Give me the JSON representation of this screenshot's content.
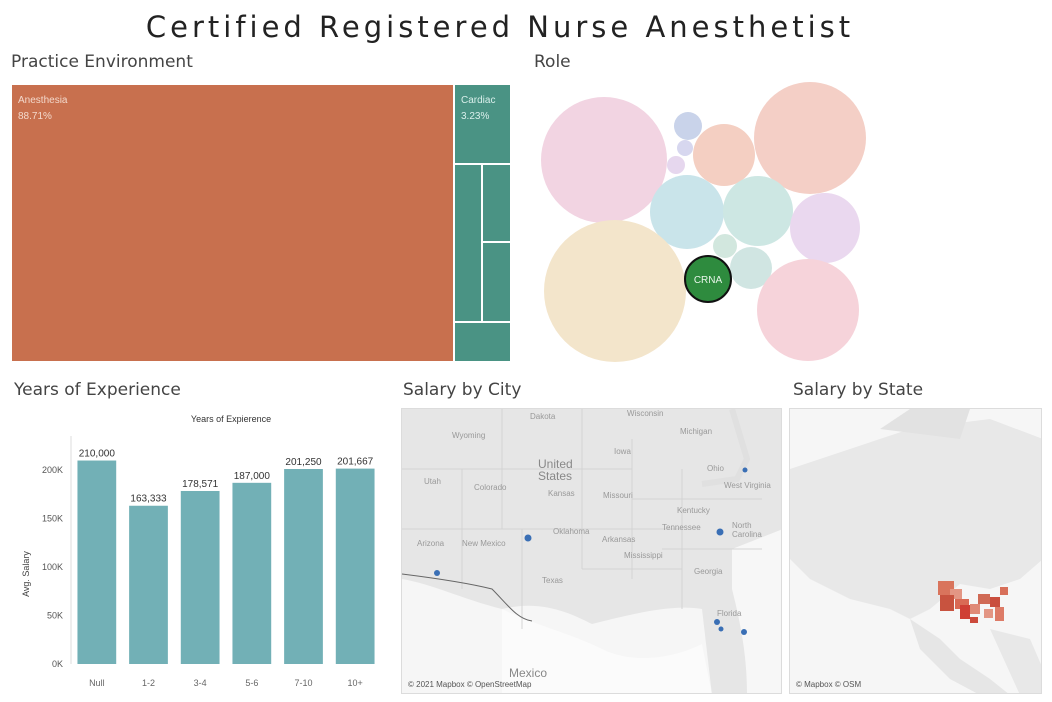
{
  "title": "Certified Registered Nurse Anesthetist",
  "sections": {
    "practice_environment": "Practice Environment",
    "role": "Role",
    "years_of_experience": "Years of Experience",
    "salary_by_city": "Salary by City",
    "salary_by_state": "Salary by State"
  },
  "treemap": {
    "main": {
      "label": "Anesthesia",
      "value": "88.71%",
      "color": "#c8704e"
    },
    "side": {
      "label": "Cardiac",
      "value": "3.23%",
      "color": "#4a9384"
    }
  },
  "role": {
    "highlight_label": "CRNA",
    "highlight_color": "#2e8b3e"
  },
  "chart_data": {
    "type": "bar",
    "title": "Years of Expierence",
    "ylabel": "Avg. Salary",
    "xlabel": "",
    "categories": [
      "Null",
      "1-2",
      "3-4",
      "5-6",
      "7-10",
      "10+"
    ],
    "values": [
      210000,
      163333,
      178571,
      187000,
      201250,
      201667
    ],
    "value_labels": [
      "210,000",
      "163,333",
      "178,571",
      "187,000",
      "201,250",
      "201,667"
    ],
    "y_ticks": [
      0,
      50000,
      100000,
      150000,
      200000
    ],
    "y_tick_labels": [
      "0K",
      "50K",
      "100K",
      "150K",
      "200K"
    ],
    "ylim": [
      0,
      225000
    ],
    "bar_color": "#72b0b6",
    "grid": false
  },
  "city_map": {
    "labels": [
      "Dakota",
      "Wisconsin",
      "Michigan",
      "Wyoming",
      "Iowa",
      "Ohio",
      "Utah",
      "Colorado",
      "Kansas",
      "Missouri",
      "Kentucky",
      "West Virginia",
      "Oklahoma",
      "Tennessee",
      "North Carolina",
      "Arizona",
      "New Mexico",
      "Arkansas",
      "Mississippi",
      "Texas",
      "Georgia",
      "Florida",
      "Mexico"
    ],
    "country_label": "United States",
    "attribution": "© 2021 Mapbox © OpenStreetMap",
    "dot_color": "#3a6fb5"
  },
  "state_map": {
    "attribution": "© Mapbox © OSM"
  }
}
